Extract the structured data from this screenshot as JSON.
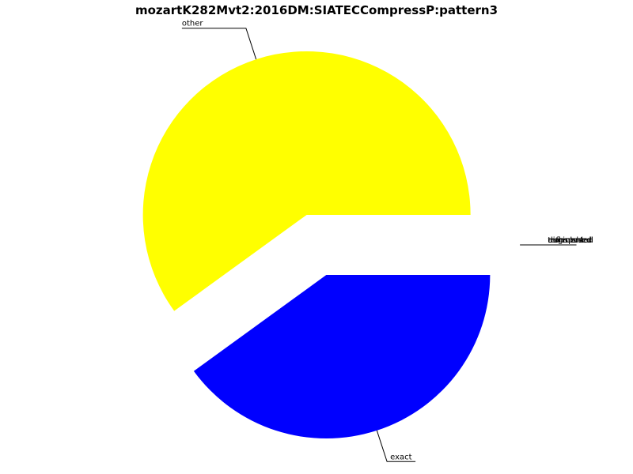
{
  "chart_data": {
    "type": "pie",
    "title": "mozartK282Mvt2:2016DM:SIATECCompressP:pattern3",
    "slices": [
      {
        "label": "other",
        "value": 60.0,
        "color": "#ffff00"
      },
      {
        "label": "exact",
        "value": 40.0,
        "color": "#0000ff"
      },
      {
        "label": "transposed",
        "value": 0,
        "color": "#00ff00"
      },
      {
        "label": "augmented",
        "value": 0,
        "color": "#ff0000"
      },
      {
        "label": "reflected",
        "value": 0,
        "color": "#00ffff"
      },
      {
        "label": "diminished",
        "value": 0,
        "color": "#ff00ff"
      }
    ],
    "legend": "none"
  }
}
